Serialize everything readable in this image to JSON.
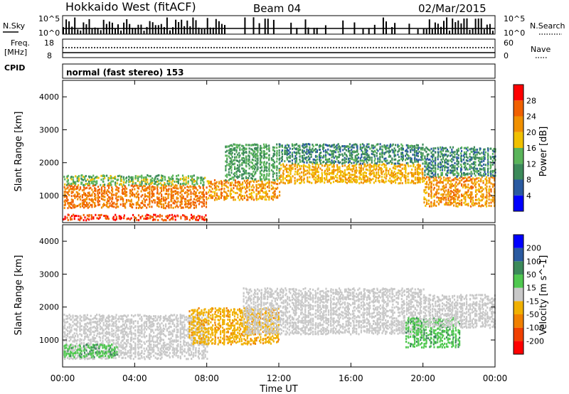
{
  "header": {
    "station": "Hokkaido West (fitACF)",
    "beam": "Beam 04",
    "date": "02/Mar/2015"
  },
  "noise_panel": {
    "left_label": "N.Sky",
    "right_label": "N.Search",
    "left_ticks": [
      "10^5",
      "10^0"
    ],
    "right_ticks": [
      "10^5",
      "10^0"
    ]
  },
  "freq_panel": {
    "label_line1": "Freq.",
    "label_line2": "[MHz]",
    "left_ticks": [
      "18",
      "8"
    ],
    "right_ticks": [
      "60",
      "0"
    ],
    "right_label": "Nave"
  },
  "cpid": {
    "label": "CPID",
    "mode_text": "normal (fast stereo) 153"
  },
  "axes": {
    "time_ticks": [
      "00:00",
      "04:00",
      "08:00",
      "12:00",
      "16:00",
      "20:00",
      "00:00"
    ],
    "xlabel": "Time UT",
    "ylabel": "Slant Range [km]",
    "range_ticks": [
      "1000",
      "2000",
      "3000",
      "4000"
    ]
  },
  "colors": {
    "power": [
      "#0000ff",
      "#2a5aa0",
      "#3c8a5a",
      "#5ab45a",
      "#f0c000",
      "#f09000",
      "#f06000",
      "#ff0000"
    ],
    "velocity": [
      "#ff0000",
      "#f04000",
      "#f08000",
      "#f0b000",
      "#c8c8c8",
      "#50c850",
      "#3c8a5a",
      "#2a5aa0",
      "#0000ff"
    ]
  },
  "chart_data": [
    {
      "type": "heatmap",
      "quantity": "Power",
      "colorbar_label": "Power [dB]",
      "colorbar_ticks": [
        "4",
        "8",
        "12",
        "16",
        "20",
        "24",
        "28"
      ],
      "colorbar_range": [
        0,
        32
      ],
      "x_range_hours": [
        0,
        24
      ],
      "y_range_km": [
        180,
        4500
      ],
      "bands": [
        {
          "start": 0,
          "end": 8,
          "lo": 650,
          "hi": 1350,
          "value": 24
        },
        {
          "start": 0,
          "end": 8,
          "lo": 1350,
          "hi": 1650,
          "value": 14
        },
        {
          "start": 0,
          "end": 8,
          "lo": 280,
          "hi": 450,
          "value": 28
        },
        {
          "start": 8,
          "end": 12,
          "lo": 900,
          "hi": 1500,
          "value": 22
        },
        {
          "start": 9,
          "end": 12,
          "lo": 1500,
          "hi": 2600,
          "value": 12
        },
        {
          "start": 12,
          "end": 20,
          "lo": 1400,
          "hi": 2000,
          "value": 20
        },
        {
          "start": 12,
          "end": 20,
          "lo": 2000,
          "hi": 2600,
          "value": 10
        },
        {
          "start": 20,
          "end": 24,
          "lo": 700,
          "hi": 1600,
          "value": 22
        },
        {
          "start": 20,
          "end": 24,
          "lo": 1600,
          "hi": 2500,
          "value": 10
        }
      ]
    },
    {
      "type": "heatmap",
      "quantity": "Velocity",
      "colorbar_label": "Velocity [m s^-1]",
      "colorbar_ticks": [
        "-200",
        "-100",
        "-50",
        "-15",
        "15",
        "50",
        "100",
        "200"
      ],
      "x_range_hours": [
        0,
        24
      ],
      "y_range_km": [
        180,
        4500
      ],
      "bands": [
        {
          "start": 0,
          "end": 8,
          "lo": 450,
          "hi": 1800,
          "value": 0
        },
        {
          "start": 0,
          "end": 3,
          "lo": 500,
          "hi": 900,
          "value": 40
        },
        {
          "start": 7,
          "end": 12,
          "lo": 900,
          "hi": 2000,
          "value": -40
        },
        {
          "start": 10,
          "end": 20,
          "lo": 1200,
          "hi": 2600,
          "value": 0
        },
        {
          "start": 19,
          "end": 22,
          "lo": 800,
          "hi": 1700,
          "value": 40
        },
        {
          "start": 20,
          "end": 24,
          "lo": 1400,
          "hi": 2400,
          "value": 0
        }
      ]
    }
  ]
}
